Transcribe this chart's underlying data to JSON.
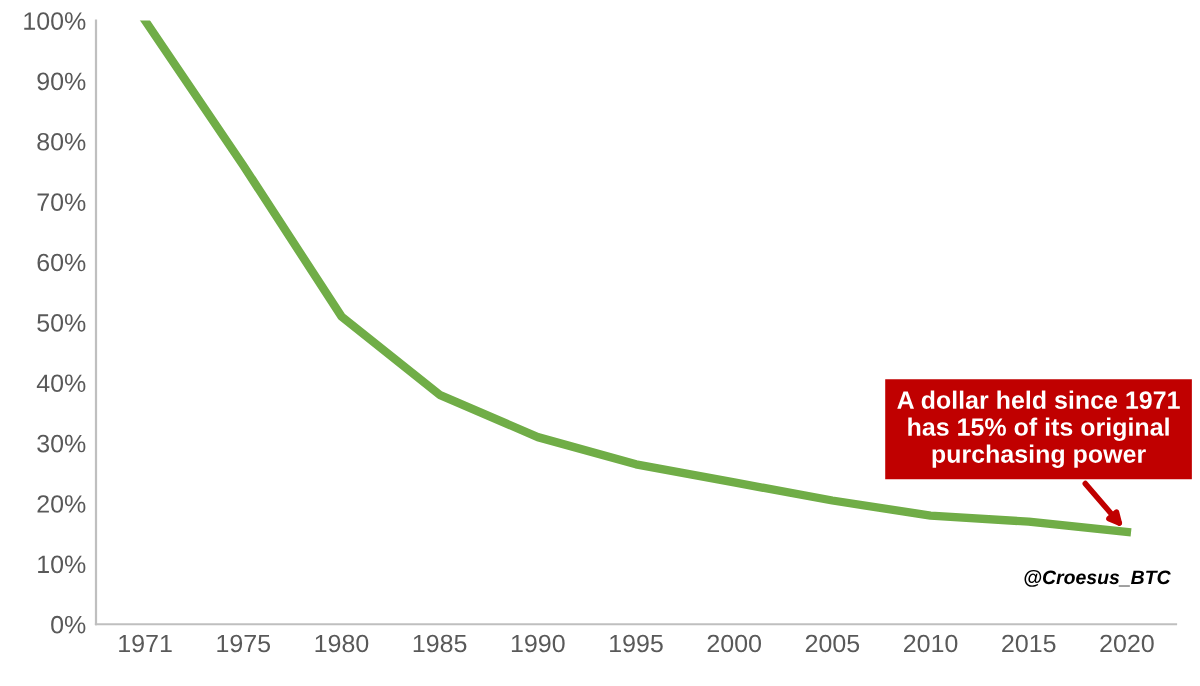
{
  "chart_data": {
    "type": "line",
    "categories": [
      "1971",
      "1975",
      "1980",
      "1985",
      "1990",
      "1995",
      "2000",
      "2005",
      "2010",
      "2015",
      "2020"
    ],
    "series": [
      {
        "color": "#70ad47",
        "values": [
          100,
          76,
          51,
          38,
          31,
          26.5,
          23.5,
          20.5,
          18,
          17,
          15.3
        ]
      }
    ],
    "ylim": [
      0,
      100
    ],
    "yticks": [
      {
        "value": 0,
        "label": "0%"
      },
      {
        "value": 10,
        "label": "10%"
      },
      {
        "value": 20,
        "label": "20%"
      },
      {
        "value": 30,
        "label": "30%"
      },
      {
        "value": 40,
        "label": "40%"
      },
      {
        "value": 50,
        "label": "50%"
      },
      {
        "value": 60,
        "label": "60%"
      },
      {
        "value": 70,
        "label": "70%"
      },
      {
        "value": 80,
        "label": "80%"
      },
      {
        "value": 90,
        "label": "90%"
      },
      {
        "value": 100,
        "label": "100%"
      }
    ],
    "grid": false,
    "legend": false,
    "marker": "none",
    "line_style": "solid",
    "annotations": [
      {
        "text": "A dollar held since 1971\nhas 15% of its original\npurchasing power",
        "x": "2020",
        "y": 15.3
      },
      "@Croesus_BTC"
    ]
  }
}
